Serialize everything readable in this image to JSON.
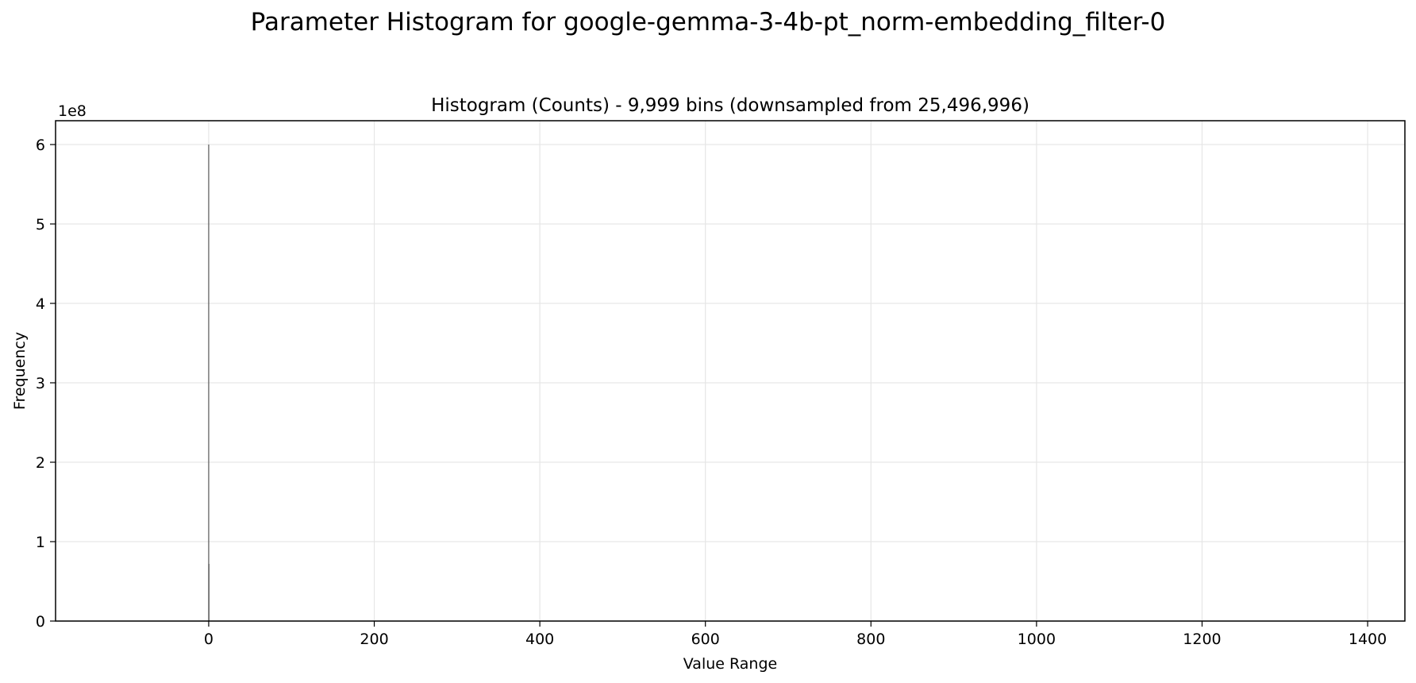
{
  "figure": {
    "suptitle": "Parameter Histogram for google-gemma-3-4b-pt_norm-embedding_filter-0"
  },
  "chart_data": {
    "type": "bar",
    "title": "Histogram (Counts) - 9,999 bins (downsampled from 25,496,996)",
    "xlabel": "Value Range",
    "ylabel": "Frequency",
    "y_offset_text": "1e8",
    "xlim": [
      -185,
      1445
    ],
    "ylim": [
      0,
      630000000
    ],
    "xticks": [
      0,
      200,
      400,
      600,
      800,
      1000,
      1200,
      1400
    ],
    "xtick_labels": [
      "0",
      "200",
      "400",
      "600",
      "800",
      "1000",
      "1200",
      "1400"
    ],
    "yticks": [
      0,
      100000000,
      200000000,
      300000000,
      400000000,
      500000000,
      600000000
    ],
    "ytick_labels": [
      "0",
      "1",
      "2",
      "3",
      "4",
      "5",
      "6"
    ],
    "grid": true,
    "bar_color": "#4a4a4a",
    "bars": [
      {
        "x": 0.0,
        "value": 600000000
      },
      {
        "x": 0.3,
        "value": 72000000
      }
    ]
  }
}
